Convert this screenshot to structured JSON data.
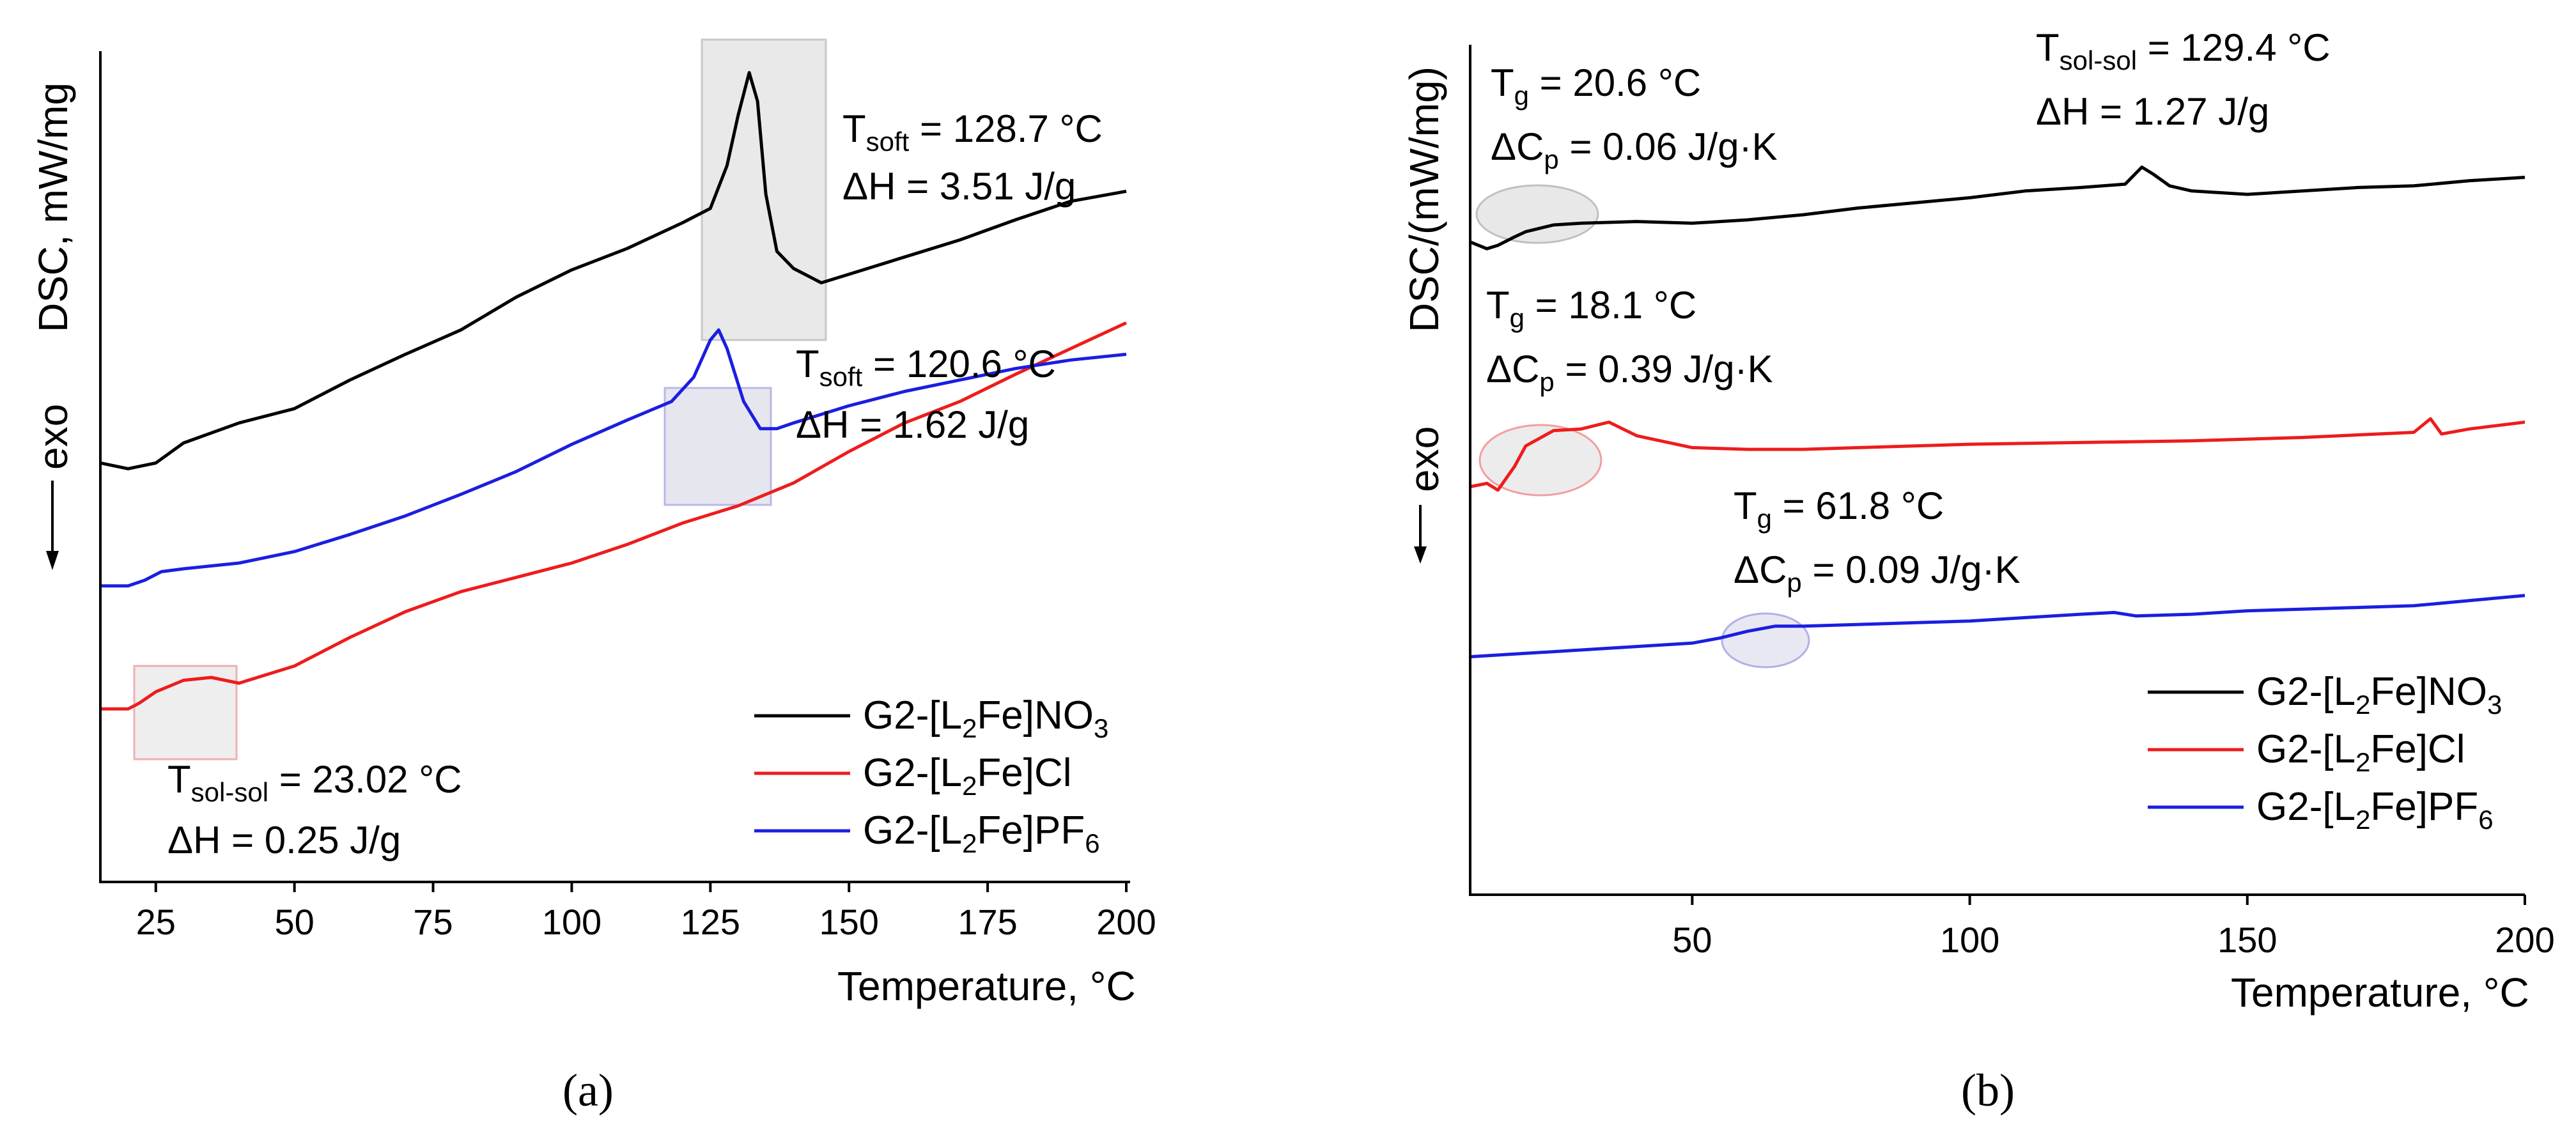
{
  "chart_data": [
    {
      "panel": "(a)",
      "type": "line",
      "xlabel": "Temperature, °C",
      "ylabel": "DSC, mW/mg",
      "exo_label": "exo",
      "xlim": [
        15,
        200
      ],
      "xticks": [
        25,
        50,
        75,
        100,
        125,
        150,
        175,
        200
      ],
      "series": [
        {
          "name": "G2-[L2Fe]NO3",
          "name_parts": [
            "G2-[L",
            "2",
            "Fe]NO",
            "3",
            ""
          ],
          "color": "#000000",
          "points": [
            [
              15,
              2.88
            ],
            [
              20,
              2.92
            ],
            [
              25,
              2.88
            ],
            [
              30,
              2.74
            ],
            [
              40,
              2.6
            ],
            [
              50,
              2.5
            ],
            [
              60,
              2.3
            ],
            [
              70,
              2.12
            ],
            [
              80,
              1.95
            ],
            [
              90,
              1.72
            ],
            [
              100,
              1.53
            ],
            [
              110,
              1.38
            ],
            [
              120,
              1.2
            ],
            [
              125,
              1.1
            ],
            [
              128,
              0.8
            ],
            [
              130,
              0.45
            ],
            [
              132,
              0.15
            ],
            [
              133.5,
              0.35
            ],
            [
              135,
              1.0
            ],
            [
              137,
              1.4
            ],
            [
              140,
              1.52
            ],
            [
              145,
              1.62
            ],
            [
              150,
              1.56
            ],
            [
              160,
              1.44
            ],
            [
              170,
              1.32
            ],
            [
              180,
              1.18
            ],
            [
              190,
              1.05
            ],
            [
              200,
              0.98
            ]
          ]
        },
        {
          "name": "G2-[L2Fe]Cl",
          "name_parts": [
            "G2-[L",
            "2",
            "Fe]Cl",
            "",
            ""
          ],
          "color": "#ee1c1c",
          "points": [
            [
              15,
              4.6
            ],
            [
              20,
              4.6
            ],
            [
              22,
              4.56
            ],
            [
              25,
              4.48
            ],
            [
              30,
              4.4
            ],
            [
              35,
              4.38
            ],
            [
              40,
              4.42
            ],
            [
              50,
              4.3
            ],
            [
              60,
              4.1
            ],
            [
              70,
              3.92
            ],
            [
              80,
              3.78
            ],
            [
              90,
              3.68
            ],
            [
              100,
              3.58
            ],
            [
              110,
              3.45
            ],
            [
              120,
              3.3
            ],
            [
              130,
              3.18
            ],
            [
              140,
              3.02
            ],
            [
              150,
              2.8
            ],
            [
              160,
              2.6
            ],
            [
              170,
              2.45
            ],
            [
              180,
              2.26
            ],
            [
              190,
              2.08
            ],
            [
              200,
              1.9
            ]
          ]
        },
        {
          "name": "G2-[L2Fe]PF6",
          "name_parts": [
            "G2-[L",
            "2",
            "Fe]PF",
            "6",
            ""
          ],
          "color": "#1b1ee0",
          "points": [
            [
              15,
              3.74
            ],
            [
              20,
              3.74
            ],
            [
              23,
              3.7
            ],
            [
              26,
              3.64
            ],
            [
              30,
              3.62
            ],
            [
              40,
              3.58
            ],
            [
              50,
              3.5
            ],
            [
              60,
              3.38
            ],
            [
              70,
              3.25
            ],
            [
              80,
              3.1
            ],
            [
              90,
              2.94
            ],
            [
              100,
              2.75
            ],
            [
              110,
              2.58
            ],
            [
              118,
              2.45
            ],
            [
              122,
              2.28
            ],
            [
              125,
              2.02
            ],
            [
              126.5,
              1.95
            ],
            [
              128,
              2.08
            ],
            [
              131,
              2.45
            ],
            [
              134,
              2.64
            ],
            [
              137,
              2.64
            ],
            [
              140,
              2.6
            ],
            [
              150,
              2.48
            ],
            [
              160,
              2.38
            ],
            [
              170,
              2.3
            ],
            [
              180,
              2.22
            ],
            [
              190,
              2.16
            ],
            [
              200,
              2.12
            ]
          ]
        }
      ],
      "annotations": [
        {
          "label": "T",
          "sub": "soft",
          "value": " = 128.7 °C",
          "dH": "ΔH = 3.51 J/g"
        },
        {
          "label": "T",
          "sub": "soft",
          "value": " = 120.6 °C",
          "dH": "ΔH = 1.62 J/g"
        },
        {
          "label": "T",
          "sub": "sol-sol",
          "value": " = 23.02 °C",
          "dH": "ΔH = 0.25 J/g"
        }
      ],
      "legend_position": "bottom-right"
    },
    {
      "panel": "(b)",
      "type": "line",
      "xlabel": "Temperature, °C",
      "ylabel": "DSC/(mW/mg)",
      "exo_label": "exo",
      "xlim": [
        10,
        200
      ],
      "xticks": [
        50,
        100,
        150,
        200
      ],
      "series": [
        {
          "name": "G2-[L2Fe]NO3",
          "name_parts": [
            "G2-[L",
            "2",
            "Fe]NO",
            "3",
            ""
          ],
          "color": "#000000",
          "points": [
            [
              10,
              1.16
            ],
            [
              13,
              1.2
            ],
            [
              15,
              1.18
            ],
            [
              18,
              1.13
            ],
            [
              20,
              1.1
            ],
            [
              25,
              1.06
            ],
            [
              30,
              1.05
            ],
            [
              40,
              1.04
            ],
            [
              50,
              1.05
            ],
            [
              60,
              1.03
            ],
            [
              70,
              1.0
            ],
            [
              80,
              0.96
            ],
            [
              90,
              0.93
            ],
            [
              100,
              0.9
            ],
            [
              110,
              0.86
            ],
            [
              120,
              0.84
            ],
            [
              128,
              0.82
            ],
            [
              131,
              0.72
            ],
            [
              133,
              0.76
            ],
            [
              136,
              0.83
            ],
            [
              140,
              0.86
            ],
            [
              150,
              0.88
            ],
            [
              160,
              0.86
            ],
            [
              170,
              0.84
            ],
            [
              180,
              0.83
            ],
            [
              190,
              0.8
            ],
            [
              200,
              0.78
            ]
          ]
        },
        {
          "name": "G2-[L2Fe]Cl",
          "name_parts": [
            "G2-[L",
            "2",
            "Fe]Cl",
            "",
            ""
          ],
          "color": "#ee1c1c",
          "points": [
            [
              10,
              2.6
            ],
            [
              13,
              2.58
            ],
            [
              15,
              2.62
            ],
            [
              18,
              2.48
            ],
            [
              20,
              2.36
            ],
            [
              25,
              2.27
            ],
            [
              30,
              2.26
            ],
            [
              35,
              2.22
            ],
            [
              40,
              2.3
            ],
            [
              50,
              2.37
            ],
            [
              60,
              2.38
            ],
            [
              70,
              2.38
            ],
            [
              80,
              2.37
            ],
            [
              100,
              2.35
            ],
            [
              120,
              2.34
            ],
            [
              140,
              2.33
            ],
            [
              160,
              2.31
            ],
            [
              180,
              2.28
            ],
            [
              183,
              2.2
            ],
            [
              185,
              2.29
            ],
            [
              190,
              2.26
            ],
            [
              200,
              2.22
            ]
          ]
        },
        {
          "name": "G2-[L2Fe]PF6",
          "name_parts": [
            "G2-[L",
            "2",
            "Fe]PF",
            "6",
            ""
          ],
          "color": "#1b1ee0",
          "points": [
            [
              10,
              3.6
            ],
            [
              20,
              3.58
            ],
            [
              30,
              3.56
            ],
            [
              40,
              3.54
            ],
            [
              50,
              3.52
            ],
            [
              55,
              3.49
            ],
            [
              60,
              3.45
            ],
            [
              65,
              3.42
            ],
            [
              70,
              3.42
            ],
            [
              80,
              3.41
            ],
            [
              90,
              3.4
            ],
            [
              100,
              3.39
            ],
            [
              110,
              3.37
            ],
            [
              120,
              3.35
            ],
            [
              126,
              3.34
            ],
            [
              130,
              3.36
            ],
            [
              140,
              3.35
            ],
            [
              150,
              3.33
            ],
            [
              160,
              3.32
            ],
            [
              170,
              3.31
            ],
            [
              180,
              3.3
            ],
            [
              190,
              3.27
            ],
            [
              200,
              3.24
            ]
          ]
        }
      ],
      "annotations": [
        {
          "label": "T",
          "sub": "g",
          "value": " = 20.6 °C",
          "dH": "ΔC",
          "dH_sub": "p",
          "dH_value": " = 0.06 J/g·K"
        },
        {
          "label": "T",
          "sub": "sol-sol",
          "value": " = 129.4 °C",
          "dH": "ΔH = 1.27 J/g"
        },
        {
          "label": "T",
          "sub": "g",
          "value": " = 18.1 °C",
          "dH": "ΔC",
          "dH_sub": "p",
          "dH_value": " = 0.39 J/g·K"
        },
        {
          "label": "T",
          "sub": "g",
          "value": " = 61.8 °C",
          "dH": "ΔC",
          "dH_sub": "p",
          "dH_value": " = 0.09 J/g·K"
        }
      ],
      "legend_position": "bottom-right"
    }
  ]
}
